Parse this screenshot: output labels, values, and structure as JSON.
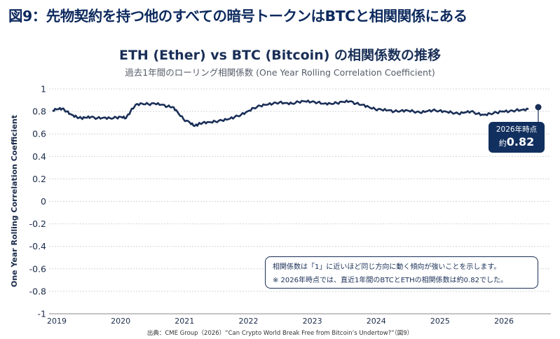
{
  "figure": {
    "title": "図9：先物契約を持つ他のすべての暗号トークンはBTCと相関関係にある",
    "source": "出典：CME Group（2026）“Can Crypto World Break Free from Bitcoin’s Undertow?”（図9）"
  },
  "chart_data": {
    "type": "line",
    "title": "ETH (Ether) vs BTC (Bitcoin) の相関係数の推移",
    "subtitle": "過去1年間のローリング相関係数 (One Year Rolling Correlation Coefficient)",
    "xlabel": "",
    "ylabel": "One Year Rolling Correlation Coefficient",
    "xlim": [
      2019,
      2026.8
    ],
    "ylim": [
      -1,
      1
    ],
    "x_ticks": [
      "2019",
      "2020",
      "2021",
      "2022",
      "2023",
      "2024",
      "2025",
      "2026"
    ],
    "y_ticks": [
      "1",
      "0.8",
      "0.6",
      "0.4",
      "0.2",
      "0",
      "-0.2",
      "-0.4",
      "-0.6",
      "-0.8",
      "-1"
    ],
    "grid": "horizontal",
    "color": "#1a2f57",
    "series": [
      {
        "x": [
          2019.0,
          2019.08,
          2019.15,
          2019.22,
          2019.3,
          2019.38,
          2019.45,
          2019.52,
          2019.6,
          2019.7,
          2019.8,
          2019.9,
          2020.0,
          2020.08,
          2020.15,
          2020.22,
          2020.3,
          2020.4,
          2020.5,
          2020.6,
          2020.7,
          2020.8,
          2020.88,
          2020.95,
          2021.05,
          2021.15,
          2021.22,
          2021.28,
          2021.35,
          2021.45,
          2021.55,
          2021.65,
          2021.75,
          2021.85,
          2021.95,
          2022.05,
          2022.15,
          2022.25,
          2022.35,
          2022.45,
          2022.55,
          2022.65,
          2022.75,
          2022.85,
          2022.95,
          2023.05,
          2023.15,
          2023.25,
          2023.35,
          2023.45,
          2023.55,
          2023.65,
          2023.75,
          2023.85,
          2023.95,
          2024.05,
          2024.15,
          2024.25,
          2024.35,
          2024.45,
          2024.55,
          2024.65,
          2024.75,
          2024.85,
          2024.95,
          2025.05,
          2025.15,
          2025.25,
          2025.35,
          2025.45,
          2025.55,
          2025.65,
          2025.75,
          2025.85,
          2025.95,
          2026.05,
          2026.15,
          2026.25,
          2026.35,
          2026.45
        ],
        "y": [
          0.81,
          0.82,
          0.825,
          0.8,
          0.77,
          0.75,
          0.74,
          0.745,
          0.75,
          0.74,
          0.745,
          0.74,
          0.745,
          0.75,
          0.74,
          0.8,
          0.86,
          0.87,
          0.865,
          0.87,
          0.86,
          0.845,
          0.84,
          0.8,
          0.73,
          0.7,
          0.67,
          0.685,
          0.7,
          0.705,
          0.71,
          0.72,
          0.73,
          0.75,
          0.77,
          0.8,
          0.83,
          0.85,
          0.86,
          0.87,
          0.88,
          0.875,
          0.87,
          0.885,
          0.89,
          0.885,
          0.88,
          0.87,
          0.87,
          0.875,
          0.885,
          0.89,
          0.87,
          0.86,
          0.84,
          0.82,
          0.815,
          0.81,
          0.8,
          0.805,
          0.81,
          0.8,
          0.79,
          0.8,
          0.81,
          0.805,
          0.8,
          0.79,
          0.78,
          0.79,
          0.8,
          0.78,
          0.77,
          0.78,
          0.79,
          0.8,
          0.8,
          0.81,
          0.815,
          0.82
        ]
      }
    ],
    "callout": {
      "line1": "2026年時点",
      "prefix": "約",
      "value": "0.82"
    },
    "note": {
      "line1": "相関係数は「1」に近いほど同じ方向に動く傾向が強いことを示します。",
      "line2": "※ 2026年時点では、直近1年間のBTCとETHの相関係数は約0.82でした。"
    }
  }
}
